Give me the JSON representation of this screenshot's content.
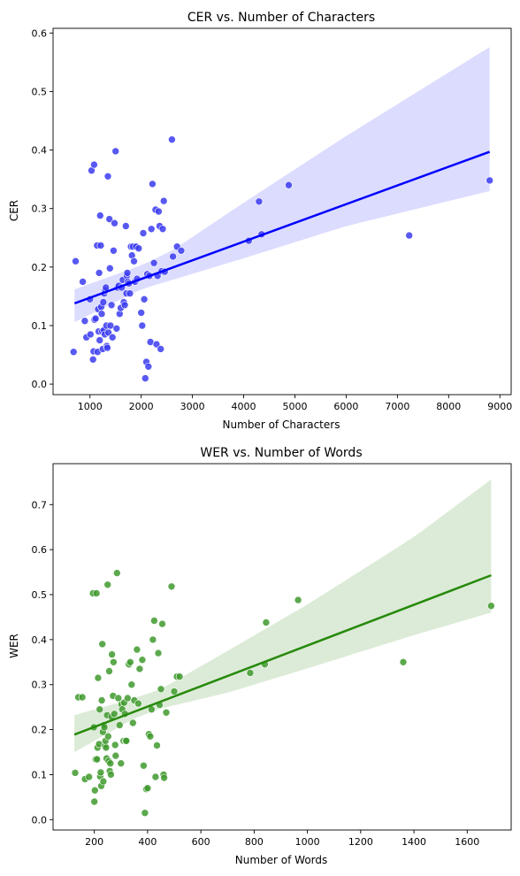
{
  "chart_data": [
    {
      "type": "scatter",
      "title": "CER vs. Number of Characters",
      "xlabel": "Number of Characters",
      "ylabel": "CER",
      "xlim": [
        280,
        9220
      ],
      "ylim": [
        -0.018,
        0.608
      ],
      "xticks": [
        1000,
        2000,
        3000,
        4000,
        5000,
        6000,
        7000,
        8000,
        9000
      ],
      "yticks": [
        0.0,
        0.1,
        0.2,
        0.3,
        0.4,
        0.5,
        0.6
      ],
      "ytick_labels": [
        "0.0",
        "0.1",
        "0.2",
        "0.3",
        "0.4",
        "0.5",
        "0.6"
      ],
      "grid": false,
      "point_color": "#3b3bf0",
      "line_color": "#0000ff",
      "band_color": "#dcdcff",
      "regression": {
        "x": [
          700,
          8800
        ],
        "y": [
          0.138,
          0.397
        ]
      },
      "band_upper": {
        "x": [
          700,
          2000,
          2600,
          4000,
          6000,
          8800
        ],
        "y": [
          0.162,
          0.203,
          0.228,
          0.31,
          0.424,
          0.576
        ]
      },
      "band_lower": {
        "x": [
          700,
          2000,
          2600,
          4000,
          6000,
          8800
        ],
        "y": [
          0.106,
          0.162,
          0.178,
          0.215,
          0.27,
          0.33
        ]
      },
      "points": [
        [
          680,
          0.055
        ],
        [
          720,
          0.21
        ],
        [
          860,
          0.175
        ],
        [
          900,
          0.108
        ],
        [
          930,
          0.08
        ],
        [
          1000,
          0.145
        ],
        [
          1010,
          0.085
        ],
        [
          1030,
          0.365
        ],
        [
          1060,
          0.042
        ],
        [
          1070,
          0.056
        ],
        [
          1080,
          0.375
        ],
        [
          1090,
          0.11
        ],
        [
          1110,
          0.112
        ],
        [
          1140,
          0.237
        ],
        [
          1150,
          0.055
        ],
        [
          1160,
          0.128
        ],
        [
          1170,
          0.09
        ],
        [
          1180,
          0.19
        ],
        [
          1190,
          0.075
        ],
        [
          1200,
          0.288
        ],
        [
          1210,
          0.237
        ],
        [
          1220,
          0.132
        ],
        [
          1230,
          0.12
        ],
        [
          1240,
          0.09
        ],
        [
          1250,
          0.06
        ],
        [
          1260,
          0.14
        ],
        [
          1270,
          0.092
        ],
        [
          1280,
          0.155
        ],
        [
          1290,
          0.085
        ],
        [
          1300,
          0.16
        ],
        [
          1310,
          0.165
        ],
        [
          1320,
          0.1
        ],
        [
          1330,
          0.065
        ],
        [
          1340,
          0.062
        ],
        [
          1350,
          0.355
        ],
        [
          1360,
          0.088
        ],
        [
          1380,
          0.282
        ],
        [
          1390,
          0.198
        ],
        [
          1400,
          0.1
        ],
        [
          1420,
          0.135
        ],
        [
          1440,
          0.08
        ],
        [
          1460,
          0.228
        ],
        [
          1480,
          0.275
        ],
        [
          1500,
          0.398
        ],
        [
          1520,
          0.095
        ],
        [
          1540,
          0.165
        ],
        [
          1560,
          0.168
        ],
        [
          1580,
          0.12
        ],
        [
          1600,
          0.13
        ],
        [
          1620,
          0.165
        ],
        [
          1640,
          0.178
        ],
        [
          1660,
          0.14
        ],
        [
          1680,
          0.135
        ],
        [
          1700,
          0.27
        ],
        [
          1710,
          0.155
        ],
        [
          1720,
          0.185
        ],
        [
          1730,
          0.19
        ],
        [
          1740,
          0.175
        ],
        [
          1760,
          0.172
        ],
        [
          1780,
          0.155
        ],
        [
          1800,
          0.235
        ],
        [
          1820,
          0.22
        ],
        [
          1840,
          0.235
        ],
        [
          1860,
          0.21
        ],
        [
          1880,
          0.175
        ],
        [
          1900,
          0.235
        ],
        [
          1920,
          0.18
        ],
        [
          1950,
          0.232
        ],
        [
          2000,
          0.122
        ],
        [
          2020,
          0.1
        ],
        [
          2040,
          0.258
        ],
        [
          2060,
          0.145
        ],
        [
          2080,
          0.01
        ],
        [
          2100,
          0.038
        ],
        [
          2120,
          0.188
        ],
        [
          2140,
          0.03
        ],
        [
          2160,
          0.185
        ],
        [
          2180,
          0.072
        ],
        [
          2200,
          0.265
        ],
        [
          2220,
          0.342
        ],
        [
          2250,
          0.207
        ],
        [
          2280,
          0.298
        ],
        [
          2300,
          0.068
        ],
        [
          2320,
          0.185
        ],
        [
          2340,
          0.295
        ],
        [
          2360,
          0.27
        ],
        [
          2380,
          0.06
        ],
        [
          2400,
          0.193
        ],
        [
          2420,
          0.265
        ],
        [
          2440,
          0.313
        ],
        [
          2460,
          0.192
        ],
        [
          2600,
          0.418
        ],
        [
          2620,
          0.218
        ],
        [
          2700,
          0.235
        ],
        [
          2780,
          0.228
        ],
        [
          4100,
          0.245
        ],
        [
          4300,
          0.312
        ],
        [
          4350,
          0.256
        ],
        [
          4880,
          0.34
        ],
        [
          7230,
          0.254
        ],
        [
          8800,
          0.348
        ]
      ]
    },
    {
      "type": "scatter",
      "title": "WER vs. Number of Words",
      "xlabel": "Number of Words",
      "ylabel": "WER",
      "xlim": [
        45,
        1765
      ],
      "ylim": [
        -0.023,
        0.791
      ],
      "xticks": [
        200,
        400,
        600,
        800,
        1000,
        1200,
        1400,
        1600
      ],
      "yticks": [
        0.0,
        0.1,
        0.2,
        0.3,
        0.4,
        0.5,
        0.6,
        0.7
      ],
      "ytick_labels": [
        "0.0",
        "0.1",
        "0.2",
        "0.3",
        "0.4",
        "0.5",
        "0.6",
        "0.7"
      ],
      "grid": false,
      "point_color": "#3f9a2e",
      "line_color": "#268a0c",
      "band_color": "#dcebd7",
      "regression": {
        "x": [
          125,
          1690
        ],
        "y": [
          0.189,
          0.543
        ]
      },
      "band_upper": {
        "x": [
          125,
          350,
          450,
          700,
          1000,
          1400,
          1690
        ],
        "y": [
          0.232,
          0.27,
          0.29,
          0.375,
          0.478,
          0.628,
          0.756
        ]
      },
      "band_lower": {
        "x": [
          125,
          350,
          450,
          700,
          1000,
          1400,
          1690
        ],
        "y": [
          0.15,
          0.225,
          0.247,
          0.282,
          0.336,
          0.41,
          0.46
        ]
      },
      "points": [
        [
          128,
          0.104
        ],
        [
          140,
          0.272
        ],
        [
          155,
          0.272
        ],
        [
          165,
          0.09
        ],
        [
          180,
          0.095
        ],
        [
          195,
          0.503
        ],
        [
          198,
          0.205
        ],
        [
          200,
          0.04
        ],
        [
          202,
          0.065
        ],
        [
          205,
          0.134
        ],
        [
          208,
          0.503
        ],
        [
          210,
          0.134
        ],
        [
          212,
          0.16
        ],
        [
          214,
          0.315
        ],
        [
          218,
          0.168
        ],
        [
          220,
          0.245
        ],
        [
          222,
          0.096
        ],
        [
          224,
          0.105
        ],
        [
          226,
          0.075
        ],
        [
          228,
          0.265
        ],
        [
          230,
          0.39
        ],
        [
          232,
          0.195
        ],
        [
          234,
          0.085
        ],
        [
          236,
          0.21
        ],
        [
          238,
          0.205
        ],
        [
          240,
          0.165
        ],
        [
          242,
          0.175
        ],
        [
          244,
          0.16
        ],
        [
          246,
          0.136
        ],
        [
          248,
          0.232
        ],
        [
          250,
          0.522
        ],
        [
          252,
          0.185
        ],
        [
          254,
          0.13
        ],
        [
          256,
          0.33
        ],
        [
          258,
          0.108
        ],
        [
          260,
          0.125
        ],
        [
          262,
          0.1
        ],
        [
          264,
          0.228
        ],
        [
          266,
          0.367
        ],
        [
          270,
          0.275
        ],
        [
          272,
          0.35
        ],
        [
          275,
          0.235
        ],
        [
          278,
          0.166
        ],
        [
          280,
          0.142
        ],
        [
          285,
          0.548
        ],
        [
          290,
          0.27
        ],
        [
          295,
          0.21
        ],
        [
          300,
          0.125
        ],
        [
          302,
          0.256
        ],
        [
          305,
          0.245
        ],
        [
          310,
          0.175
        ],
        [
          312,
          0.26
        ],
        [
          315,
          0.235
        ],
        [
          318,
          0.175
        ],
        [
          320,
          0.175
        ],
        [
          325,
          0.27
        ],
        [
          330,
          0.345
        ],
        [
          335,
          0.35
        ],
        [
          340,
          0.3
        ],
        [
          345,
          0.215
        ],
        [
          350,
          0.265
        ],
        [
          360,
          0.378
        ],
        [
          365,
          0.258
        ],
        [
          370,
          0.335
        ],
        [
          380,
          0.355
        ],
        [
          385,
          0.12
        ],
        [
          390,
          0.015
        ],
        [
          395,
          0.068
        ],
        [
          400,
          0.07
        ],
        [
          405,
          0.19
        ],
        [
          410,
          0.185
        ],
        [
          415,
          0.245
        ],
        [
          420,
          0.4
        ],
        [
          425,
          0.442
        ],
        [
          430,
          0.095
        ],
        [
          435,
          0.165
        ],
        [
          440,
          0.37
        ],
        [
          445,
          0.255
        ],
        [
          450,
          0.29
        ],
        [
          455,
          0.435
        ],
        [
          460,
          0.1
        ],
        [
          462,
          0.093
        ],
        [
          470,
          0.238
        ],
        [
          490,
          0.518
        ],
        [
          500,
          0.285
        ],
        [
          510,
          0.318
        ],
        [
          520,
          0.318
        ],
        [
          785,
          0.326
        ],
        [
          840,
          0.345
        ],
        [
          845,
          0.438
        ],
        [
          965,
          0.488
        ],
        [
          1360,
          0.35
        ],
        [
          1690,
          0.475
        ]
      ]
    }
  ]
}
